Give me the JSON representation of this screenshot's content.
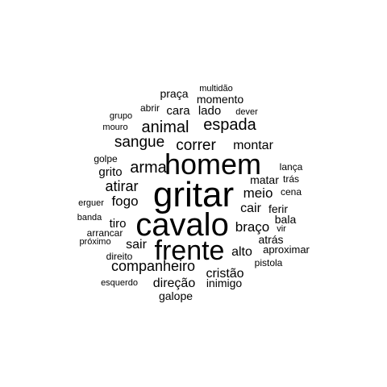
{
  "chart_data": {
    "type": "wordcloud",
    "title": "",
    "color": "#000000",
    "words": [
      {
        "text": "gritar",
        "weight": 100
      },
      {
        "text": "cavalo",
        "weight": 95
      },
      {
        "text": "homem",
        "weight": 85
      },
      {
        "text": "frente",
        "weight": 80
      },
      {
        "text": "animal",
        "weight": 45
      },
      {
        "text": "espada",
        "weight": 45
      },
      {
        "text": "arma",
        "weight": 45
      },
      {
        "text": "sangue",
        "weight": 42
      },
      {
        "text": "correr",
        "weight": 42
      },
      {
        "text": "companheiro",
        "weight": 40
      },
      {
        "text": "atirar",
        "weight": 38
      },
      {
        "text": "braço",
        "weight": 36
      },
      {
        "text": "meio",
        "weight": 34
      },
      {
        "text": "fogo",
        "weight": 34
      },
      {
        "text": "montar",
        "weight": 30
      },
      {
        "text": "cair",
        "weight": 30
      },
      {
        "text": "alto",
        "weight": 30
      },
      {
        "text": "direção",
        "weight": 30
      },
      {
        "text": "cristão",
        "weight": 30
      },
      {
        "text": "sair",
        "weight": 30
      },
      {
        "text": "grito",
        "weight": 28
      },
      {
        "text": "cara",
        "weight": 28
      },
      {
        "text": "lado",
        "weight": 28
      },
      {
        "text": "tiro",
        "weight": 28
      },
      {
        "text": "praça",
        "weight": 26
      },
      {
        "text": "momento",
        "weight": 26
      },
      {
        "text": "atrás",
        "weight": 26
      },
      {
        "text": "ferir",
        "weight": 26
      },
      {
        "text": "bala",
        "weight": 26
      },
      {
        "text": "inimigo",
        "weight": 26
      },
      {
        "text": "galope",
        "weight": 26
      },
      {
        "text": "matar",
        "weight": 24
      },
      {
        "text": "aproximar",
        "weight": 24
      },
      {
        "text": "pistola",
        "weight": 22
      },
      {
        "text": "direito",
        "weight": 22
      },
      {
        "text": "trás",
        "weight": 20
      },
      {
        "text": "abrir",
        "weight": 20
      },
      {
        "text": "golpe",
        "weight": 20
      },
      {
        "text": "lança",
        "weight": 20
      },
      {
        "text": "cena",
        "weight": 20
      },
      {
        "text": "arrancar",
        "weight": 20
      },
      {
        "text": "multidão",
        "weight": 18
      },
      {
        "text": "dever",
        "weight": 18
      },
      {
        "text": "grupo",
        "weight": 18
      },
      {
        "text": "mouro",
        "weight": 18
      },
      {
        "text": "erguer",
        "weight": 18
      },
      {
        "text": "banda",
        "weight": 18
      },
      {
        "text": "vir",
        "weight": 18
      },
      {
        "text": "próximo",
        "weight": 18
      },
      {
        "text": "esquerdo",
        "weight": 18
      }
    ]
  }
}
